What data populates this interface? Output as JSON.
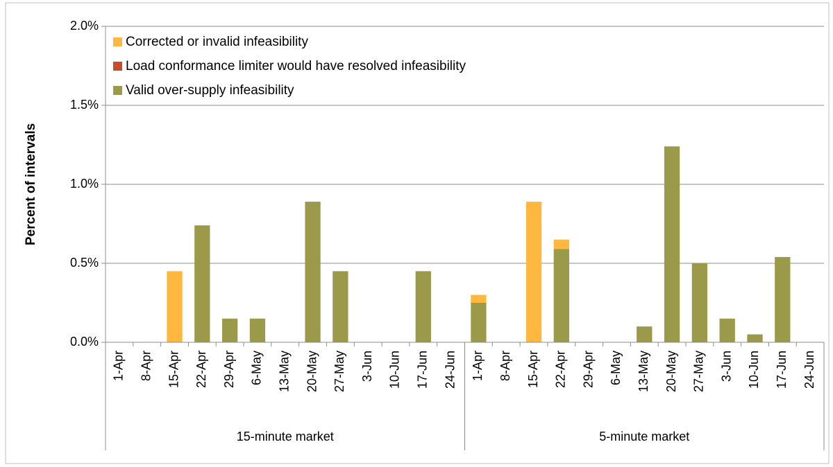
{
  "chart_data": {
    "type": "stacked_bar",
    "y_label": "Percent of intervals",
    "groups": [
      {
        "name": "15-minute market",
        "categories": [
          "1-Apr",
          "8-Apr",
          "15-Apr",
          "22-Apr",
          "29-Apr",
          "6-May",
          "13-May",
          "20-May",
          "27-May",
          "3-Jun",
          "10-Jun",
          "17-Jun",
          "24-Jun"
        ]
      },
      {
        "name": "5-minute market",
        "categories": [
          "1-Apr",
          "8-Apr",
          "15-Apr",
          "22-Apr",
          "29-Apr",
          "6-May",
          "13-May",
          "20-May",
          "27-May",
          "3-Jun",
          "10-Jun",
          "17-Jun",
          "24-Jun"
        ]
      }
    ],
    "series": [
      {
        "name": "Corrected or invalid infeasibility",
        "color": "#ffb83f",
        "values": [
          0,
          0,
          0.45,
          0,
          0,
          0,
          0,
          0,
          0,
          0,
          0,
          0,
          0,
          0.05,
          0,
          0.89,
          0.06,
          0,
          0,
          0,
          0,
          0,
          0,
          0,
          0,
          0
        ]
      },
      {
        "name": "Load conformance limiter would have resolved infeasibility",
        "color": "#c84b2a",
        "values": [
          0,
          0,
          0,
          0,
          0,
          0,
          0,
          0,
          0,
          0,
          0,
          0,
          0,
          0,
          0,
          0,
          0,
          0,
          0,
          0,
          0,
          0,
          0,
          0,
          0,
          0
        ]
      },
      {
        "name": "Valid over-supply infeasibility",
        "color": "#9a9a4a",
        "values": [
          0,
          0,
          0,
          0.74,
          0.15,
          0.15,
          0,
          0.89,
          0.45,
          0,
          0,
          0.45,
          0,
          0.25,
          0,
          0,
          0.59,
          0,
          0,
          0.1,
          1.24,
          0.5,
          0.15,
          0.05,
          0.54,
          0
        ]
      }
    ],
    "ylim": [
      0,
      2
    ],
    "yticks": [
      {
        "value": 0,
        "label": "0.0%"
      },
      {
        "value": 0.5,
        "label": "0.5%"
      },
      {
        "value": 1,
        "label": "1.0%"
      },
      {
        "value": 1.5,
        "label": "1.5%"
      },
      {
        "value": 2,
        "label": "2.0%"
      }
    ],
    "grid": true,
    "legend": "top-left"
  }
}
